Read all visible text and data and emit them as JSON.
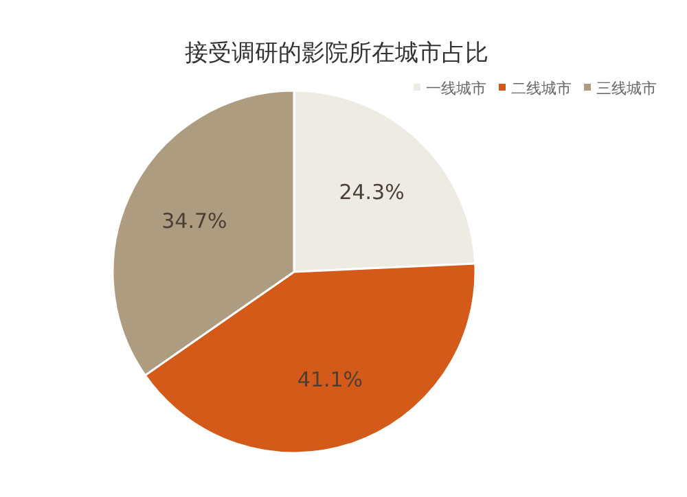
{
  "chart_data": {
    "type": "pie",
    "title": "接受调研的影院所在城市占比",
    "categories": [
      "一线城市",
      "二线城市",
      "三线城市"
    ],
    "values": [
      24.3,
      41.1,
      34.7
    ],
    "value_labels": [
      "24.3%",
      "41.1%",
      "34.7%"
    ],
    "colors": [
      "#eeebe5",
      "#d45a1a",
      "#ae9c80"
    ],
    "legend": "top right"
  }
}
